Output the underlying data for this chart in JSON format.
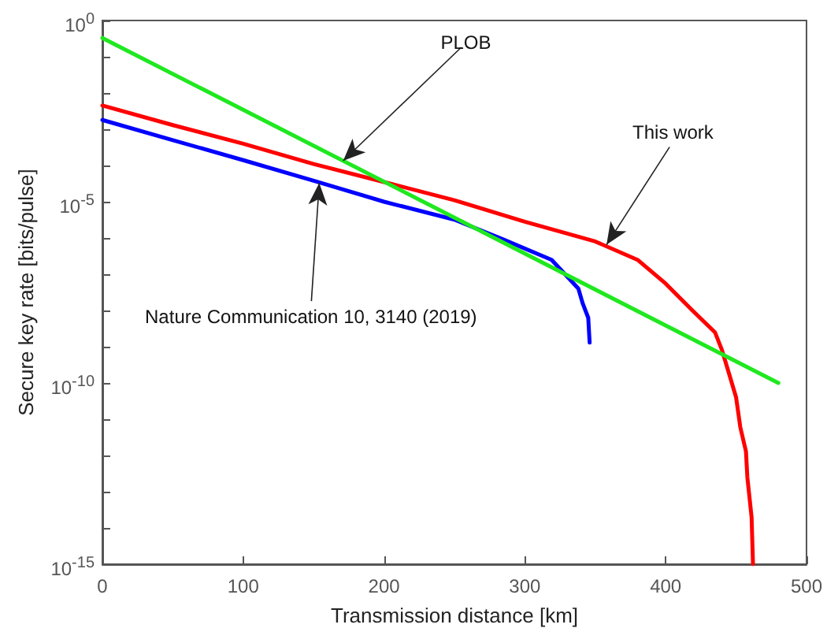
{
  "chart_data": {
    "type": "line",
    "xlabel": "Transmission distance [km]",
    "ylabel": "Secure key rate [bits/pulse]",
    "xlim": [
      0,
      500
    ],
    "xticks": [
      0,
      100,
      200,
      300,
      400,
      500
    ],
    "ylim": [
      1e-15,
      1
    ],
    "log": true,
    "grid": false,
    "marker": "none",
    "line_style": "solid",
    "yticks": [
      {
        "value": 1e-15,
        "label": "10$^{-15}$"
      },
      {
        "value": 1e-14,
        "label": null
      },
      {
        "value": 1e-13,
        "label": null
      },
      {
        "value": 1e-12,
        "label": null
      },
      {
        "value": 1e-11,
        "label": null
      },
      {
        "value": 1e-10,
        "label": "10$^{-10}$"
      },
      {
        "value": 1e-09,
        "label": null
      },
      {
        "value": 1e-08,
        "label": null
      },
      {
        "value": 1e-07,
        "label": null
      },
      {
        "value": 1e-06,
        "label": null
      },
      {
        "value": 1e-05,
        "label": "10$^{-5}$"
      },
      {
        "value": 0.0001,
        "label": null
      },
      {
        "value": 0.001,
        "label": null
      },
      {
        "value": 0.01,
        "label": null
      },
      {
        "value": 0.1,
        "label": null
      },
      {
        "value": 1,
        "label": "10$^{0}$"
      }
    ],
    "series": [
      {
        "color": "#ff0000",
        "x": [
          0,
          50,
          100,
          150,
          200,
          250,
          300,
          350,
          380,
          400,
          419,
          435,
          440,
          445,
          450,
          453,
          457,
          458,
          461,
          462
        ],
        "values": [
          0.0045,
          0.0013,
          0.0004,
          0.00011,
          3.5e-05,
          1.1e-05,
          2.8e-06,
          8e-07,
          2.5e-07,
          5.5e-08,
          1e-08,
          2.5e-09,
          8e-10,
          1.8e-10,
          4e-11,
          6e-12,
          1.3e-12,
          2.5e-13,
          2e-14,
          1e-15
        ]
      },
      {
        "color": "#0000ff",
        "x": [
          0,
          50,
          100,
          151,
          200,
          250,
          285,
          319,
          338,
          341,
          345,
          346
        ],
        "values": [
          0.0018,
          0.0005,
          0.00014,
          3.7e-05,
          1e-05,
          3.2e-06,
          9e-07,
          2.5e-07,
          4e-08,
          1.6e-08,
          6.3e-09,
          1.3e-09
        ]
      },
      {
        "color": "#1fe81f",
        "x": [
          0,
          480
        ],
        "values": [
          0.33,
          1e-10
        ]
      }
    ],
    "annotations": [
      {
        "text": "PLOB",
        "x": 171,
        "y": 0.000135
      },
      {
        "text": "This work",
        "x": 358,
        "y": 6.5e-07
      },
      {
        "text": "Nature Communication 10, 3140 (2019)",
        "x": 154,
        "y": 3.3e-05
      }
    ]
  }
}
